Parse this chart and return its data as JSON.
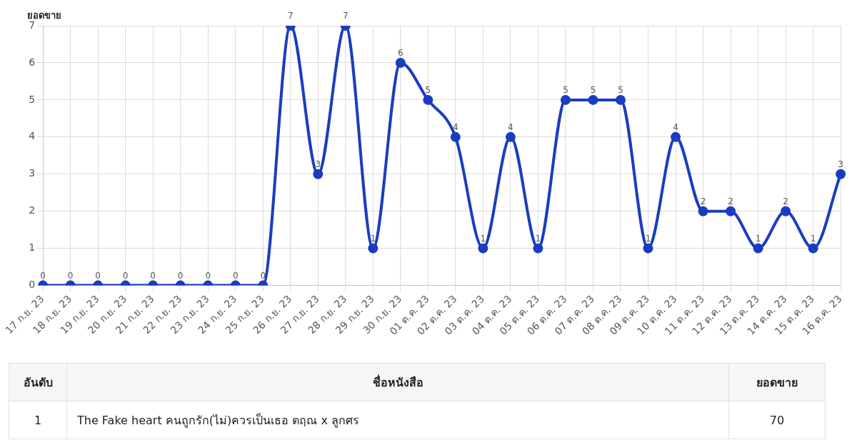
{
  "chart_data": [
    {
      "type": "line",
      "ylabel": "ยอดขาย",
      "categories": [
        "17 ก.ย. 23",
        "18 ก.ย. 23",
        "19 ก.ย. 23",
        "20 ก.ย. 23",
        "21 ก.ย. 23",
        "22 ก.ย. 23",
        "23 ก.ย. 23",
        "24 ก.ย. 23",
        "25 ก.ย. 23",
        "26 ก.ย. 23",
        "27 ก.ย. 23",
        "28 ก.ย. 23",
        "29 ก.ย. 23",
        "30 ก.ย. 23",
        "01 ต.ค. 23",
        "02 ต.ค. 23",
        "03 ต.ค. 23",
        "04 ต.ค. 23",
        "05 ต.ค. 23",
        "06 ต.ค. 23",
        "07 ต.ค. 23",
        "08 ต.ค. 23",
        "09 ต.ค. 23",
        "10 ต.ค. 23",
        "11 ต.ค. 23",
        "12 ต.ค. 23",
        "13 ต.ค. 23",
        "14 ต.ค. 23",
        "15 ต.ค. 23",
        "16 ต.ค. 23"
      ],
      "series": [
        {
          "color": "#1a3dbf",
          "values": [
            0,
            0,
            0,
            0,
            0,
            0,
            0,
            0,
            0,
            7,
            3,
            7,
            1,
            6,
            5,
            4,
            1,
            4,
            1,
            5,
            5,
            5,
            1,
            4,
            2,
            2,
            1,
            2,
            1,
            3
          ]
        }
      ],
      "ylim": [
        0,
        7
      ],
      "yticks": [
        0,
        1,
        2,
        3,
        4,
        5,
        6,
        7
      ],
      "grid": true,
      "data_labels": true,
      "marker": "circle",
      "line_style": "solid",
      "legend": false
    },
    {
      "type": "other",
      "annotations": [
        "อันดับ",
        "ชื่อหนังสือ",
        "ยอดขาย",
        "1",
        "The Fake heart คนถูกรัก(ไม่)ควรเป็นเธอ ตฤณ x ลูกศร",
        "70"
      ]
    }
  ]
}
